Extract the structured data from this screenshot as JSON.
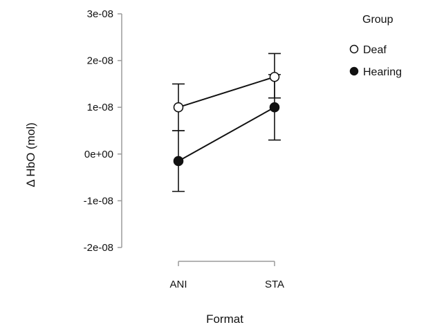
{
  "chart_data": {
    "type": "line",
    "title": "",
    "xlabel": "Format",
    "ylabel": "Δ HbO (mol)",
    "categories": [
      "ANI",
      "STA"
    ],
    "ylim": [
      -2e-08,
      3e-08
    ],
    "y_ticks": [
      {
        "value": 3e-08,
        "label": "3e-08"
      },
      {
        "value": 2e-08,
        "label": "2e-08"
      },
      {
        "value": 1e-08,
        "label": "1e-08"
      },
      {
        "value": 0,
        "label": "0e+00"
      },
      {
        "value": -1e-08,
        "label": "-1e-08"
      },
      {
        "value": -2e-08,
        "label": "-2e-08"
      }
    ],
    "legend": {
      "title": "Group",
      "position": "right"
    },
    "series": [
      {
        "name": "Deaf",
        "marker": "open-circle",
        "values": [
          1e-08,
          1.65e-08
        ],
        "error_lower": [
          5e-09,
          1.2e-08
        ],
        "error_upper": [
          1.5e-08,
          2.15e-08
        ]
      },
      {
        "name": "Hearing",
        "marker": "filled-circle",
        "values": [
          -1.5e-09,
          1e-08
        ],
        "error_lower": [
          -8e-09,
          3e-09
        ],
        "error_upper": [
          5e-09,
          1.7e-08
        ]
      }
    ],
    "grid": false,
    "colors": {
      "line": "#111111",
      "marker_fill_open": "#ffffff",
      "marker_fill_solid": "#111111",
      "axis": "#9a9a9a"
    }
  }
}
